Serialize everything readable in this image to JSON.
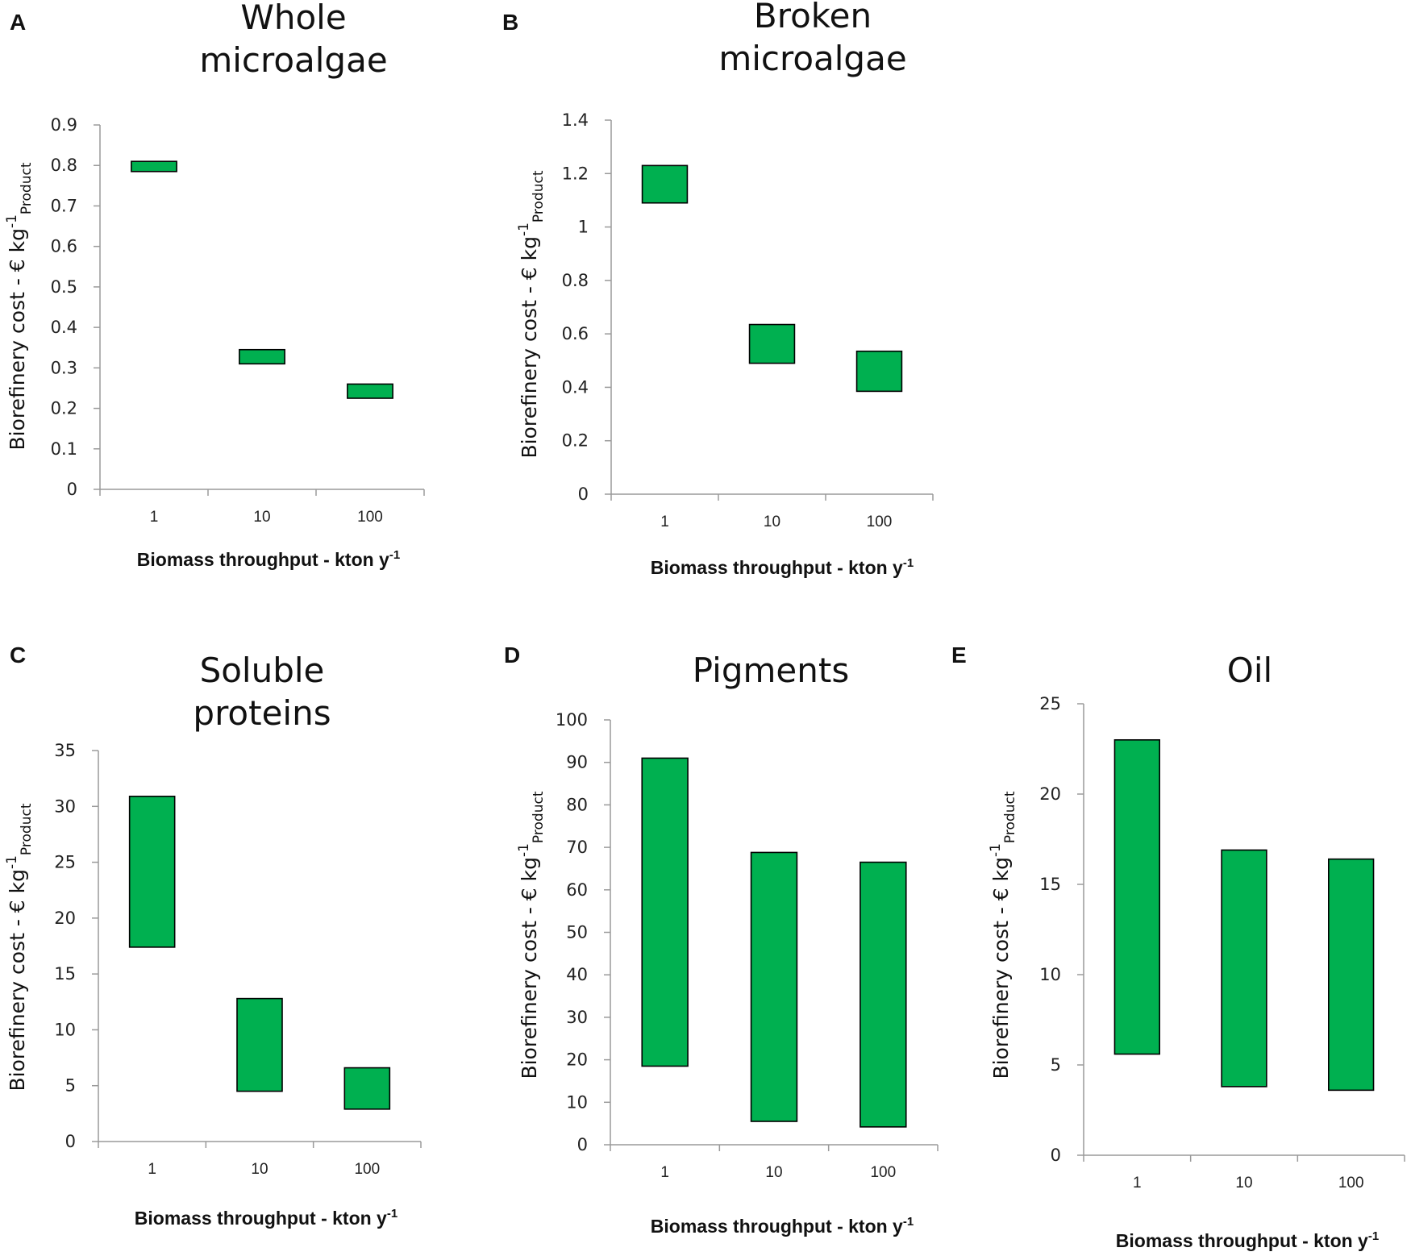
{
  "colors": {
    "bar_fill": "#00b050",
    "bar_stroke": "#000000",
    "axis": "#9a9a9a"
  },
  "chart_data": [
    {
      "panel": "A",
      "type": "bar",
      "subtype": "floating-range",
      "title": [
        "Whole",
        "microalgae"
      ],
      "xlabel": "Biomass throughput - kton y",
      "xlabel_sup": "-1",
      "ylabel": "Biorefinery cost - € kg",
      "ylabel_sup": "-1",
      "ylabel_sub": "Product",
      "categories": [
        "1",
        "10",
        "100"
      ],
      "ranges": [
        [
          0.785,
          0.81
        ],
        [
          0.31,
          0.345
        ],
        [
          0.225,
          0.26
        ]
      ],
      "ylim": [
        0,
        0.9
      ],
      "yticks": [
        "0",
        "0.1",
        "0.2",
        "0.3",
        "0.4",
        "0.5",
        "0.6",
        "0.7",
        "0.8",
        "0.9"
      ]
    },
    {
      "panel": "B",
      "type": "bar",
      "subtype": "floating-range",
      "title": [
        "Broken",
        "microalgae"
      ],
      "xlabel": "Biomass throughput - kton y",
      "xlabel_sup": "-1",
      "ylabel": "Biorefinery cost - € kg",
      "ylabel_sup": "-1",
      "ylabel_sub": "Product",
      "categories": [
        "1",
        "10",
        "100"
      ],
      "ranges": [
        [
          1.09,
          1.23
        ],
        [
          0.49,
          0.635
        ],
        [
          0.385,
          0.535
        ]
      ],
      "ylim": [
        0,
        1.4
      ],
      "yticks": [
        "0",
        "0.2",
        "0.4",
        "0.6",
        "0.8",
        "1",
        "1.2",
        "1.4"
      ]
    },
    {
      "panel": "C",
      "type": "bar",
      "subtype": "floating-range",
      "title": [
        "Soluble",
        "proteins"
      ],
      "xlabel": "Biomass throughput - kton y",
      "xlabel_sup": "-1",
      "ylabel": "Biorefinery cost - € kg",
      "ylabel_sup": "-1",
      "ylabel_sub": "Product",
      "categories": [
        "1",
        "10",
        "100"
      ],
      "ranges": [
        [
          17.4,
          30.9
        ],
        [
          4.5,
          12.8
        ],
        [
          2.9,
          6.6
        ]
      ],
      "ylim": [
        0,
        35
      ],
      "yticks": [
        "0",
        "5",
        "10",
        "15",
        "20",
        "25",
        "30",
        "35"
      ]
    },
    {
      "panel": "D",
      "type": "bar",
      "subtype": "floating-range",
      "title": [
        "Pigments"
      ],
      "xlabel": "Biomass throughput - kton y",
      "xlabel_sup": "-1",
      "ylabel": "Biorefinery cost - € kg",
      "ylabel_sup": "-1",
      "ylabel_sub": "Product",
      "categories": [
        "1",
        "10",
        "100"
      ],
      "ranges": [
        [
          18.5,
          91
        ],
        [
          5.5,
          68.8
        ],
        [
          4.2,
          66.5
        ]
      ],
      "ylim": [
        0,
        100
      ],
      "yticks": [
        "0",
        "10",
        "20",
        "30",
        "40",
        "50",
        "60",
        "70",
        "80",
        "90",
        "100"
      ]
    },
    {
      "panel": "E",
      "type": "bar",
      "subtype": "floating-range",
      "title": [
        "Oil"
      ],
      "xlabel": "Biomass throughput - kton y",
      "xlabel_sup": "-1",
      "ylabel": "Biorefinery cost - € kg",
      "ylabel_sup": "-1",
      "ylabel_sub": "Product",
      "categories": [
        "1",
        "10",
        "100"
      ],
      "ranges": [
        [
          5.6,
          23
        ],
        [
          3.8,
          16.9
        ],
        [
          3.6,
          16.4
        ]
      ],
      "ylim": [
        0,
        25
      ],
      "yticks": [
        "0",
        "5",
        "10",
        "15",
        "20",
        "25"
      ]
    }
  ]
}
